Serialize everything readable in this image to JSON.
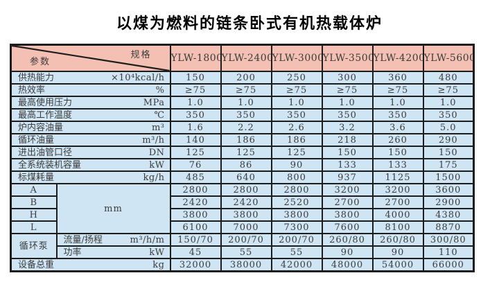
{
  "title": "以煤为燃料的链条卧式有机热载体炉",
  "colors": {
    "header_bg": "#f4c0b3",
    "row_bg": "#d0e5f3",
    "border": "#1d1d1d",
    "text": "#3c3c3c"
  },
  "table": {
    "corner": {
      "top_right": "规格",
      "bottom_left": "参数"
    },
    "models": [
      "YLW-1800",
      "YLW-2400",
      "YLW-3000",
      "YLW-3500",
      "YLW-4200",
      "YLW-5600"
    ],
    "rows": [
      {
        "label": "供热能力",
        "unit": "×10⁴kcal/h",
        "values": [
          "150",
          "200",
          "250",
          "300",
          "360",
          "480"
        ]
      },
      {
        "label": "热效率",
        "unit": "%",
        "values": [
          "≥75",
          "≥75",
          "≥75",
          "≥75",
          "≥75",
          "≥75"
        ]
      },
      {
        "label": "最高使用压力",
        "unit": "MPa",
        "values": [
          "1.0",
          "1.0",
          "1.0",
          "1.0",
          "1.0",
          "1.0"
        ]
      },
      {
        "label": "最高工作温度",
        "unit": "℃",
        "values": [
          "350",
          "350",
          "350",
          "350",
          "350",
          "350"
        ]
      },
      {
        "label": "炉内容油量",
        "unit": "m³",
        "values": [
          "1.6",
          "2.2",
          "2.6",
          "3.2",
          "3.6",
          "5.0"
        ]
      },
      {
        "label": "循环油量",
        "unit": "m³/h",
        "values": [
          "140",
          "186",
          "186",
          "218",
          "260",
          "290"
        ]
      },
      {
        "label": "进出油管口径",
        "unit": "DN",
        "values": [
          "125",
          "125",
          "125",
          "150",
          "150",
          "150"
        ]
      },
      {
        "label": "全系统装机容量",
        "unit": "kW",
        "values": [
          "76",
          "86",
          "90",
          "133",
          "133",
          "175"
        ]
      },
      {
        "label": "标煤耗量",
        "unit": "kg/h",
        "values": [
          "485",
          "640",
          "800",
          "937",
          "1125",
          "1500"
        ]
      }
    ],
    "dimensions": {
      "unit": "mm",
      "rows": [
        {
          "label": "A",
          "values": [
            "2800",
            "2800",
            "2800",
            "3200",
            "3200",
            "3600"
          ]
        },
        {
          "label": "B",
          "values": [
            "2420",
            "2420",
            "2520",
            "2700",
            "2700",
            "2900"
          ]
        },
        {
          "label": "H",
          "values": [
            "3800",
            "3800",
            "3800",
            "3800",
            "4000",
            "4380"
          ]
        },
        {
          "label": "L",
          "values": [
            "6100",
            "7000",
            "7300",
            "7600",
            "8100",
            "8870"
          ]
        }
      ]
    },
    "pump": {
      "label": "循环泵",
      "rows": [
        {
          "label": "流量/扬程",
          "unit": "m³/h/m",
          "values": [
            "150/70",
            "200/70",
            "200/70",
            "260/80",
            "260/80",
            "300/80"
          ]
        },
        {
          "label": "功率",
          "unit": "kW",
          "values": [
            "45",
            "55",
            "55",
            "90",
            "90",
            "110"
          ]
        }
      ]
    },
    "total": {
      "label": "设备总重",
      "unit": "kg",
      "values": [
        "32000",
        "38000",
        "42000",
        "48000",
        "54000",
        "66000"
      ]
    }
  }
}
